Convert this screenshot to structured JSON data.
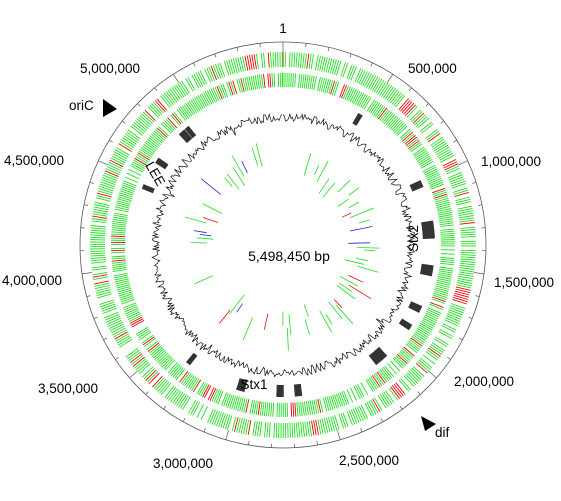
{
  "genome_map": {
    "genome_size_label": "5,498,450 bp",
    "position_labels": [
      "1",
      "500,000",
      "1,000,000",
      "1,500,000",
      "2,000,000",
      "2,500,000",
      "3,000,000",
      "3,500,000",
      "4,000,000",
      "4,500,000",
      "5,000,000"
    ],
    "feature_labels": {
      "oric": "oriC",
      "dif": "dif",
      "lee": "LEE",
      "stx1": "Stx1",
      "stx2": "Stx2"
    },
    "colors": {
      "green": "#22dd22",
      "red": "#ee0000",
      "black": "#111111",
      "blue": "#2222cc",
      "dark_block": "#333333"
    }
  }
}
